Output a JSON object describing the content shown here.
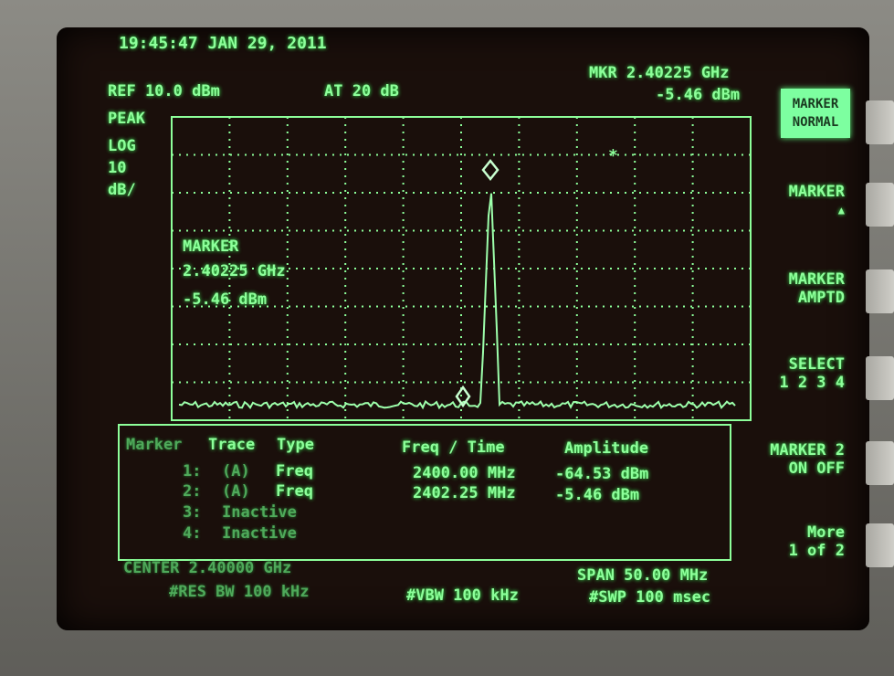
{
  "header": {
    "timestamp": "19:45:47 JAN 29, 2011",
    "ref_level": "REF 10.0 dBm",
    "attenuation": "AT 20 dB",
    "marker_freq": "MKR 2.40225 GHz",
    "marker_amplitude": "-5.46 dBm"
  },
  "scale": [
    "PEAK",
    "LOG",
    "10",
    "dB/"
  ],
  "softkeys": [
    {
      "lines": [
        "MARKER",
        "NORMAL"
      ]
    },
    {
      "lines": [
        "MARKER",
        "▲"
      ]
    },
    {
      "lines": [
        "MARKER",
        "AMPTD"
      ]
    },
    {
      "lines": [
        "SELECT",
        "1 2 3 4"
      ]
    },
    {
      "lines": [
        "MARKER 2",
        "ON OFF"
      ]
    },
    {
      "lines": [
        "More",
        "1 of 2"
      ]
    }
  ],
  "marker_readout": [
    "MARKER",
    "2.40225 GHz",
    "-5.46 dBm"
  ],
  "marker_table": {
    "columns": [
      "Marker",
      "Trace",
      "Type",
      "Freq / Time",
      "Amplitude"
    ],
    "rows": [
      [
        "1:",
        "(A)",
        "Freq",
        "2400.00 MHz",
        "-64.53 dBm"
      ],
      [
        "2:",
        "(A)",
        "Freq",
        "2402.25 MHz",
        "-5.46 dBm"
      ],
      [
        "3:",
        "Inactive"
      ],
      [
        "4:",
        "Inactive"
      ]
    ]
  },
  "footer": {
    "center": "CENTER 2.40000 GHz",
    "rbw": "#RES BW 100 kHz",
    "vbw": "#VBW 100 kHz",
    "span": "SPAN 50.00 MHz",
    "sweep": "#SWP 100 msec"
  }
}
